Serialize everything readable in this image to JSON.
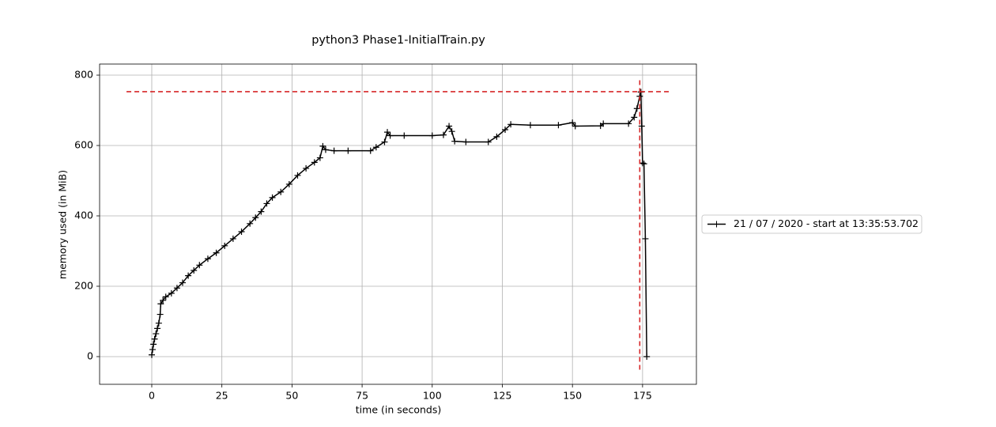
{
  "chart_data": {
    "type": "line",
    "title": "python3 Phase1-InitialTrain.py",
    "xlabel": "time (in seconds)",
    "ylabel": "memory used (in MiB)",
    "x": [
      0,
      0.3,
      0.6,
      1,
      1.5,
      2,
      2.5,
      3,
      3.2,
      4,
      5,
      7,
      9,
      11,
      13,
      15,
      17,
      20,
      23,
      26,
      29,
      32,
      35,
      37,
      39,
      41,
      43,
      46,
      49,
      52,
      55,
      58,
      60,
      61,
      62,
      65,
      70,
      78,
      80,
      83,
      84,
      85,
      90,
      100,
      104,
      106,
      107,
      108,
      112,
      120,
      123,
      126,
      128,
      135,
      145,
      150,
      151,
      160,
      161,
      170,
      172,
      173,
      174,
      174.4,
      174.7,
      175,
      175.5,
      176,
      176.5
    ],
    "series": [
      {
        "name": "21 / 07 / 2020 - start at 13:35:53.702",
        "color": "#000000",
        "values": [
          5,
          20,
          35,
          50,
          65,
          80,
          95,
          120,
          150,
          160,
          170,
          180,
          195,
          210,
          230,
          245,
          260,
          278,
          295,
          315,
          335,
          355,
          378,
          395,
          412,
          435,
          452,
          468,
          490,
          515,
          535,
          552,
          565,
          598,
          588,
          585,
          585,
          585,
          595,
          610,
          638,
          628,
          628,
          628,
          630,
          655,
          640,
          612,
          610,
          610,
          625,
          645,
          660,
          658,
          658,
          665,
          655,
          656,
          662,
          662,
          680,
          705,
          740,
          752,
          655,
          550,
          548,
          335,
          0
        ]
      }
    ],
    "xlim": [
      -18.6,
      194.2
    ],
    "ylim": [
      -78.7,
      831.5
    ],
    "xticks": [
      0,
      25,
      50,
      75,
      100,
      125,
      150,
      175
    ],
    "yticks": [
      0,
      200,
      400,
      600,
      800
    ],
    "grid": true,
    "legend": "right",
    "reference_lines": {
      "color": "#d62728",
      "hline": {
        "y": 753,
        "xlim": [
          -9,
          185
        ]
      },
      "vline": {
        "x": 174,
        "ylim": [
          -37,
          790
        ]
      }
    }
  }
}
